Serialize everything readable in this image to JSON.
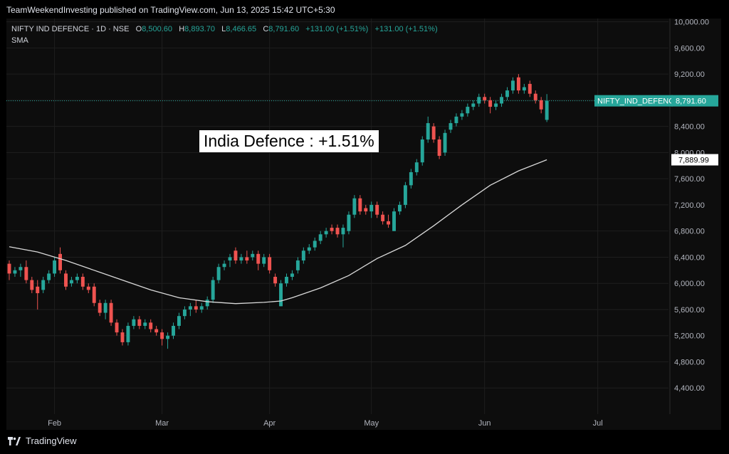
{
  "header": {
    "published": "TeamWeekendInvesting published on TradingView.com, Jun 13, 2025 15:42 UTC+5:30"
  },
  "legend": {
    "symbol": "NIFTY IND DEFENCE · 1D · NSE",
    "o_label": "O",
    "o_value": "8,500.60",
    "h_label": "H",
    "h_value": "8,893.70",
    "l_label": "L",
    "l_value": "8,466.65",
    "c_label": "C",
    "c_value": "8,791.60",
    "change": "+131.00 (+1.51%)",
    "change2": "+131.00 (+1.51%)",
    "indicator": "SMA"
  },
  "annotation": {
    "text": "India Defence : +1.51%"
  },
  "footer": {
    "brand": "TradingView"
  },
  "colors": {
    "up": "#26a69a",
    "down": "#ef5350",
    "sma": "#d9d9d9",
    "grid": "#1e1e1e",
    "axis_text": "#b2b5be"
  },
  "chart_data": {
    "type": "candlestick",
    "symbol": "NIFTY_IND_DEFENCE",
    "ylim": [
      4000,
      10050
    ],
    "y_ticks": [
      4400,
      4800,
      5200,
      5600,
      6000,
      6400,
      6800,
      7200,
      7600,
      8000,
      8400,
      8800,
      9200,
      9600,
      10000
    ],
    "y_tick_labels": [
      "4,400.00",
      "4,800.00",
      "5,200.00",
      "5,600.00",
      "6,000.00",
      "6,400.00",
      "6,800.00",
      "7,200.00",
      "7,600.00",
      "8,000.00",
      "8,400.00",
      "8,800.00",
      "9,200.00",
      "9,600.00",
      "10,000.00"
    ],
    "x_labels": [
      {
        "label": "Feb",
        "index": 8
      },
      {
        "label": "Mar",
        "index": 27
      },
      {
        "label": "Apr",
        "index": 46
      },
      {
        "label": "May",
        "index": 64
      },
      {
        "label": "Jun",
        "index": 84
      },
      {
        "label": "Jul",
        "index": 104
      }
    ],
    "x_range": [
      0,
      117
    ],
    "last_price_label": "NIFTY_IND_DEFENCE",
    "last_price": 8791.6,
    "last_price_text": "8,791.60",
    "sma_last": 7889.99,
    "sma_last_text": "7,889.99",
    "candles": [
      [
        6300,
        6350,
        6050,
        6150
      ],
      [
        6150,
        6250,
        6100,
        6200
      ],
      [
        6200,
        6300,
        6100,
        6250
      ],
      [
        6250,
        6350,
        6000,
        6050
      ],
      [
        6050,
        6100,
        5850,
        5900
      ],
      [
        5950,
        6050,
        5600,
        5850
      ],
      [
        5900,
        6100,
        5850,
        6050
      ],
      [
        6050,
        6200,
        6000,
        6150
      ],
      [
        6150,
        6400,
        6100,
        6350
      ],
      [
        6450,
        6550,
        6150,
        6200
      ],
      [
        6150,
        6200,
        5900,
        5950
      ],
      [
        6000,
        6100,
        5950,
        6050
      ],
      [
        6050,
        6150,
        6000,
        6100
      ],
      [
        6100,
        6150,
        5900,
        5950
      ],
      [
        5950,
        6000,
        5850,
        5900
      ],
      [
        5950,
        6000,
        5650,
        5700
      ],
      [
        5700,
        5750,
        5500,
        5550
      ],
      [
        5550,
        5750,
        5450,
        5700
      ],
      [
        5700,
        5750,
        5350,
        5400
      ],
      [
        5400,
        5450,
        5200,
        5250
      ],
      [
        5250,
        5300,
        5050,
        5100
      ],
      [
        5100,
        5400,
        5050,
        5350
      ],
      [
        5350,
        5500,
        5300,
        5450
      ],
      [
        5450,
        5500,
        5300,
        5350
      ],
      [
        5350,
        5450,
        5300,
        5400
      ],
      [
        5400,
        5450,
        5250,
        5300
      ],
      [
        5300,
        5350,
        5200,
        5250
      ],
      [
        5250,
        5300,
        5050,
        5150
      ],
      [
        5150,
        5250,
        5000,
        5200
      ],
      [
        5200,
        5400,
        5150,
        5350
      ],
      [
        5350,
        5550,
        5300,
        5500
      ],
      [
        5500,
        5650,
        5450,
        5600
      ],
      [
        5600,
        5700,
        5500,
        5650
      ],
      [
        5650,
        5750,
        5550,
        5600
      ],
      [
        5600,
        5700,
        5550,
        5650
      ],
      [
        5650,
        5800,
        5600,
        5750
      ],
      [
        5750,
        6100,
        5700,
        6050
      ],
      [
        6050,
        6300,
        6000,
        6250
      ],
      [
        6250,
        6350,
        6200,
        6300
      ],
      [
        6350,
        6450,
        6250,
        6400
      ],
      [
        6500,
        6550,
        6300,
        6350
      ],
      [
        6350,
        6450,
        6300,
        6400
      ],
      [
        6400,
        6500,
        6300,
        6350
      ],
      [
        6400,
        6500,
        6350,
        6450
      ],
      [
        6450,
        6500,
        6200,
        6300
      ],
      [
        6300,
        6450,
        6250,
        6400
      ],
      [
        6400,
        6450,
        6150,
        6200
      ],
      [
        6100,
        6150,
        5950,
        6000
      ],
      [
        5650,
        6050,
        5650,
        6000
      ],
      [
        6000,
        6150,
        5950,
        6100
      ],
      [
        6100,
        6200,
        6050,
        6150
      ],
      [
        6200,
        6400,
        6150,
        6350
      ],
      [
        6350,
        6550,
        6300,
        6500
      ],
      [
        6500,
        6600,
        6450,
        6550
      ],
      [
        6550,
        6700,
        6500,
        6650
      ],
      [
        6650,
        6800,
        6600,
        6750
      ],
      [
        6750,
        6850,
        6700,
        6800
      ],
      [
        6850,
        6900,
        6750,
        6800
      ],
      [
        6850,
        6900,
        6700,
        6750
      ],
      [
        6750,
        6900,
        6550,
        6850
      ],
      [
        6800,
        7100,
        6750,
        7050
      ],
      [
        7050,
        7350,
        7000,
        7300
      ],
      [
        7300,
        7350,
        7050,
        7100
      ],
      [
        7150,
        7200,
        7050,
        7100
      ],
      [
        7100,
        7250,
        7000,
        7200
      ],
      [
        7200,
        7250,
        7000,
        7050
      ],
      [
        7050,
        7100,
        6900,
        6950
      ],
      [
        6950,
        7050,
        6850,
        6900
      ],
      [
        6800,
        7150,
        6800,
        7100
      ],
      [
        7100,
        7250,
        7050,
        7200
      ],
      [
        7200,
        7550,
        7150,
        7500
      ],
      [
        7500,
        7750,
        7450,
        7700
      ],
      [
        7700,
        7900,
        7650,
        7850
      ],
      [
        7850,
        8250,
        7800,
        8200
      ],
      [
        8200,
        8550,
        8150,
        8450
      ],
      [
        8400,
        8450,
        8150,
        8200
      ],
      [
        8200,
        8250,
        7900,
        7950
      ],
      [
        8000,
        8350,
        7950,
        8300
      ],
      [
        8350,
        8500,
        8300,
        8450
      ],
      [
        8450,
        8600,
        8400,
        8550
      ],
      [
        8550,
        8650,
        8500,
        8600
      ],
      [
        8600,
        8750,
        8550,
        8700
      ],
      [
        8700,
        8800,
        8650,
        8750
      ],
      [
        8750,
        8900,
        8700,
        8850
      ],
      [
        8850,
        8900,
        8750,
        8800
      ],
      [
        8800,
        8850,
        8600,
        8700
      ],
      [
        8700,
        8800,
        8650,
        8750
      ],
      [
        8750,
        8900,
        8700,
        8850
      ],
      [
        8850,
        9000,
        8800,
        8950
      ],
      [
        8950,
        9150,
        8900,
        9100
      ],
      [
        9150,
        9200,
        8900,
        8950
      ],
      [
        8950,
        9050,
        8900,
        9000
      ],
      [
        9050,
        9100,
        8850,
        8900
      ],
      [
        8900,
        8950,
        8750,
        8800
      ],
      [
        8800,
        8850,
        8600,
        8660
      ],
      [
        8500,
        8894,
        8467,
        8792
      ]
    ],
    "sma": [
      [
        0,
        6560
      ],
      [
        5,
        6480
      ],
      [
        10,
        6350
      ],
      [
        15,
        6200
      ],
      [
        20,
        6050
      ],
      [
        25,
        5900
      ],
      [
        30,
        5780
      ],
      [
        35,
        5720
      ],
      [
        40,
        5690
      ],
      [
        45,
        5710
      ],
      [
        48,
        5730
      ],
      [
        50,
        5780
      ],
      [
        55,
        5930
      ],
      [
        60,
        6120
      ],
      [
        65,
        6380
      ],
      [
        70,
        6580
      ],
      [
        75,
        6880
      ],
      [
        80,
        7200
      ],
      [
        85,
        7500
      ],
      [
        90,
        7720
      ],
      [
        95,
        7889.99
      ]
    ]
  }
}
